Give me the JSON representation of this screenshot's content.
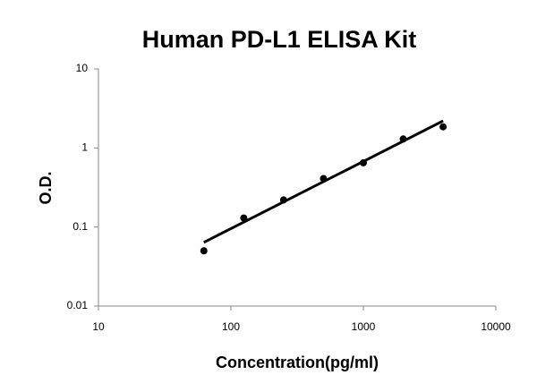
{
  "chart_data": {
    "type": "scatter",
    "title": "Human PD-L1 ELISA Kit",
    "x_label": "Concentration(pg/ml)",
    "y_label": "O.D.",
    "x": [
      62.5,
      125,
      250,
      500,
      1000,
      2000,
      4000
    ],
    "values": [
      0.05,
      0.13,
      0.22,
      0.41,
      0.65,
      1.3,
      1.85
    ],
    "color": "#000000",
    "fit": {
      "x": [
        62.5,
        4000
      ],
      "values": [
        0.064,
        2.2
      ]
    },
    "xlim": [
      10,
      10000
    ],
    "ylim": [
      0.01,
      10
    ],
    "xticks": [
      10,
      100,
      1000,
      10000
    ],
    "yticks": [
      0.01,
      0.1,
      1,
      10
    ],
    "xscale": "log",
    "yscale": "log",
    "grid": false
  }
}
